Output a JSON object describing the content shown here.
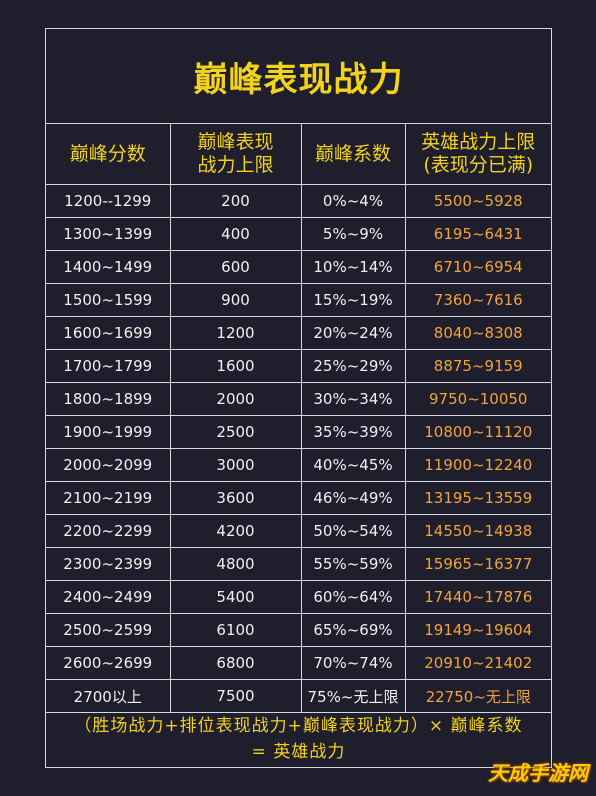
{
  "title": "巅峰表现战力",
  "headers": [
    "巅峰分数",
    "巅峰表现\n战力上限",
    "巅峰系数",
    "英雄战力上限\n(表现分已满)"
  ],
  "rows": [
    [
      "1200--1299",
      "200",
      "0%~4%",
      "5500~5928"
    ],
    [
      "1300~1399",
      "400",
      "5%~9%",
      "6195~6431"
    ],
    [
      "1400~1499",
      "600",
      "10%~14%",
      "6710~6954"
    ],
    [
      "1500~1599",
      "900",
      "15%~19%",
      "7360~7616"
    ],
    [
      "1600~1699",
      "1200",
      "20%~24%",
      "8040~8308"
    ],
    [
      "1700~1799",
      "1600",
      "25%~29%",
      "8875~9159"
    ],
    [
      "1800~1899",
      "2000",
      "30%~34%",
      "9750~10050"
    ],
    [
      "1900~1999",
      "2500",
      "35%~39%",
      "10800~11120"
    ],
    [
      "2000~2099",
      "3000",
      "40%~45%",
      "11900~12240"
    ],
    [
      "2100~2199",
      "3600",
      "46%~49%",
      "13195~13559"
    ],
    [
      "2200~2299",
      "4200",
      "50%~54%",
      "14550~14938"
    ],
    [
      "2300~2399",
      "4800",
      "55%~59%",
      "15965~16377"
    ],
    [
      "2400~2499",
      "5400",
      "60%~64%",
      "17440~17876"
    ],
    [
      "2500~2599",
      "6100",
      "65%~69%",
      "19149~19604"
    ],
    [
      "2600~2699",
      "6800",
      "70%~74%",
      "20910~21402"
    ],
    [
      "2700以上",
      "7500",
      "75%~无上限",
      "22750~无上限"
    ]
  ],
  "formula": {
    "line1": "（胜场战力+排位表现战力+巅峰表现战力）× 巅峰系数",
    "line2": "= 英雄战力"
  },
  "watermark": "天成手游网",
  "colors": {
    "background": "#1e1e2c",
    "title": "#f2d21a",
    "power_value": "#f2a33a",
    "text": "#f0f0f0",
    "border": "#d8d8e0"
  }
}
